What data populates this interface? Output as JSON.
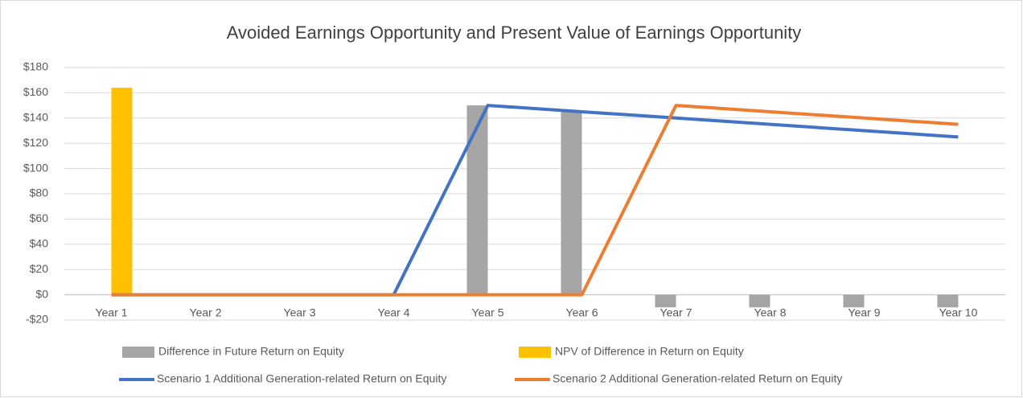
{
  "chart_data": {
    "type": "combo",
    "title": "Avoided Earnings Opportunity and Present Value of Earnings Opportunity",
    "categories": [
      "Year 1",
      "Year 2",
      "Year 3",
      "Year 4",
      "Year 5",
      "Year 6",
      "Year 7",
      "Year 8",
      "Year 9",
      "Year 10"
    ],
    "series": [
      {
        "name": "Difference in Future Return on Equity",
        "type": "bar",
        "color": "#a5a5a5",
        "values": [
          0,
          0,
          0,
          0,
          150,
          145,
          -10,
          -10,
          -10,
          -10
        ]
      },
      {
        "name": "NPV of Difference in Return on Equity",
        "type": "bar",
        "color": "#ffc000",
        "values": [
          164,
          null,
          null,
          null,
          null,
          null,
          null,
          null,
          null,
          null
        ]
      },
      {
        "name": "Scenario 1 Additional Generation-related Return on Equity",
        "type": "line",
        "color": "#4472c4",
        "values": [
          0,
          0,
          0,
          0,
          150,
          145,
          140,
          135,
          130,
          125
        ]
      },
      {
        "name": "Scenario 2 Additional Generation-related Return on Equity",
        "type": "line",
        "color": "#ed7d31",
        "values": [
          0,
          0,
          0,
          0,
          0,
          0,
          150,
          145,
          140,
          135
        ]
      }
    ],
    "ylim": [
      -20,
      180
    ],
    "yticks": [
      {
        "value": -20,
        "label": "-$20"
      },
      {
        "value": 0,
        "label": "$0"
      },
      {
        "value": 20,
        "label": "$20"
      },
      {
        "value": 40,
        "label": "$40"
      },
      {
        "value": 60,
        "label": "$60"
      },
      {
        "value": 80,
        "label": "$80"
      },
      {
        "value": 100,
        "label": "$100"
      },
      {
        "value": 120,
        "label": "$120"
      },
      {
        "value": 140,
        "label": "$140"
      },
      {
        "value": 160,
        "label": "$160"
      },
      {
        "value": 180,
        "label": "$180"
      }
    ],
    "grid": true,
    "legend": "bottom"
  }
}
